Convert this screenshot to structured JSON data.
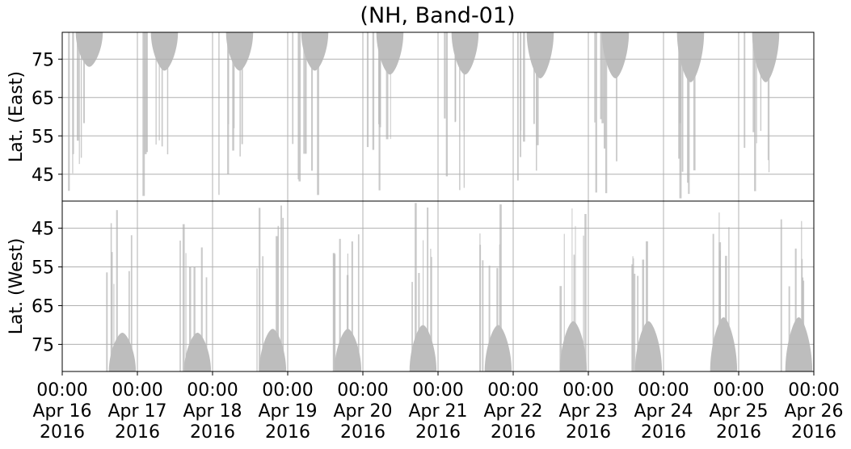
{
  "chart_data": {
    "type": "heatmap",
    "title": "(NH, Band-01)",
    "panels": [
      {
        "name": "east",
        "ylabel": "Lat. (East)",
        "ylim": [
          82,
          38
        ],
        "yticks": [
          45,
          55,
          65,
          75
        ],
        "grid": true,
        "pass_extent_lat_max": [
          73,
          72,
          72,
          72,
          71,
          71,
          70,
          70,
          69,
          69
        ]
      },
      {
        "name": "west",
        "ylabel": "Lat. (West)",
        "ylim": [
          38,
          82
        ],
        "yticks": [
          45,
          55,
          65,
          75
        ],
        "grid": true,
        "pass_extent_lat_max": [
          72,
          72,
          71,
          71,
          70,
          70,
          69,
          69,
          68,
          68
        ]
      }
    ],
    "x": {
      "range": [
        "2016-04-16 00:00",
        "2016-04-26 00:00"
      ],
      "ticks": [
        {
          "time": "00:00",
          "day": "Apr 16",
          "year": "2016"
        },
        {
          "time": "00:00",
          "day": "Apr 17",
          "year": "2016"
        },
        {
          "time": "00:00",
          "day": "Apr 18",
          "year": "2016"
        },
        {
          "time": "00:00",
          "day": "Apr 19",
          "year": "2016"
        },
        {
          "time": "00:00",
          "day": "Apr 20",
          "year": "2016"
        },
        {
          "time": "00:00",
          "day": "Apr 21",
          "year": "2016"
        },
        {
          "time": "00:00",
          "day": "Apr 22",
          "year": "2016"
        },
        {
          "time": "00:00",
          "day": "Apr 23",
          "year": "2016"
        },
        {
          "time": "00:00",
          "day": "Apr 24",
          "year": "2016"
        },
        {
          "time": "00:00",
          "day": "Apr 25",
          "year": "2016"
        },
        {
          "time": "00:00",
          "day": "Apr 26",
          "year": "2016"
        }
      ]
    },
    "fill_color": "#bdbdbd",
    "grid_color": "#b0b0b0"
  }
}
